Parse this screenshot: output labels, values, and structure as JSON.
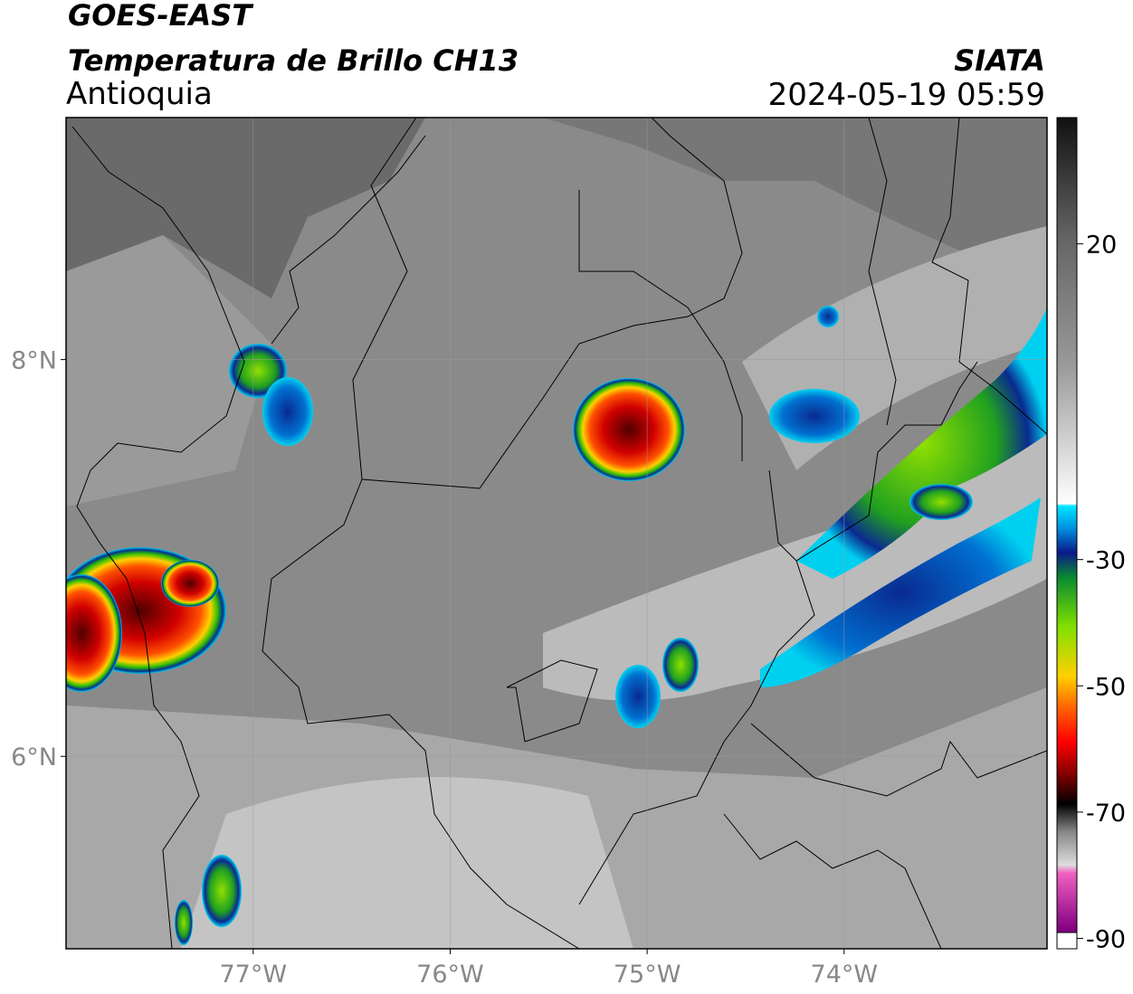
{
  "header": {
    "title": "GOES-EAST",
    "subtitle": "Temperatura de Brillo CH13",
    "region": "Antioquia",
    "source": "SIATA",
    "datetime": "2024-05-19 05:59"
  },
  "map": {
    "lonlim": [
      -77.95,
      -72.97
    ],
    "latlim": [
      5.03,
      9.22
    ],
    "xticks": [
      {
        "value": -77,
        "label": "77°W"
      },
      {
        "value": -76,
        "label": "76°W"
      },
      {
        "value": -75,
        "label": "75°W"
      },
      {
        "value": -74,
        "label": "74°W"
      }
    ],
    "yticks": [
      {
        "value": 8,
        "label": "8°N"
      },
      {
        "value": 6,
        "label": "6°N"
      }
    ],
    "grid": true
  },
  "colorbar": {
    "clim": [
      -91.5,
      40
    ],
    "ticks": [
      20,
      -30,
      -50,
      -70,
      -90
    ]
  }
}
